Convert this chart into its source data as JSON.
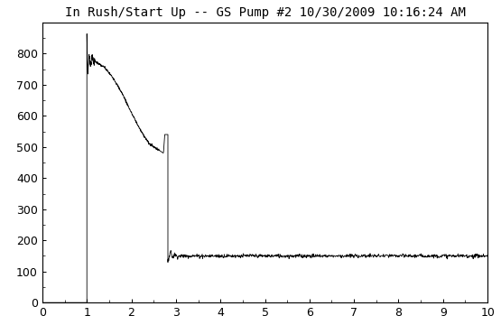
{
  "title": "In Rush/Start Up -- GS Pump #2 10/30/2009 10:16:24 AM",
  "xlim": [
    0,
    10
  ],
  "ylim": [
    0,
    900
  ],
  "xticks": [
    0,
    1,
    2,
    3,
    4,
    5,
    6,
    7,
    8,
    9,
    10
  ],
  "yticks": [
    0,
    100,
    200,
    300,
    400,
    500,
    600,
    700,
    800
  ],
  "line_color": "#000000",
  "bg_color": "#ffffff",
  "title_fontsize": 10,
  "tick_fontsize": 9,
  "steady_state": 150
}
